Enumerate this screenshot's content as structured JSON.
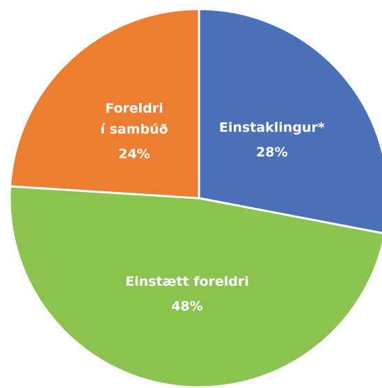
{
  "chart_data": {
    "type": "pie",
    "categories": [
      "Einstaklingur*",
      "Einstætt foreldri",
      "Foreldri\ní sambúð"
    ],
    "values": [
      28,
      48,
      24
    ],
    "value_labels": [
      "28%",
      "48%",
      "24%"
    ],
    "colors": [
      "#4a70b8",
      "#8bc34f",
      "#ed7d31"
    ]
  }
}
